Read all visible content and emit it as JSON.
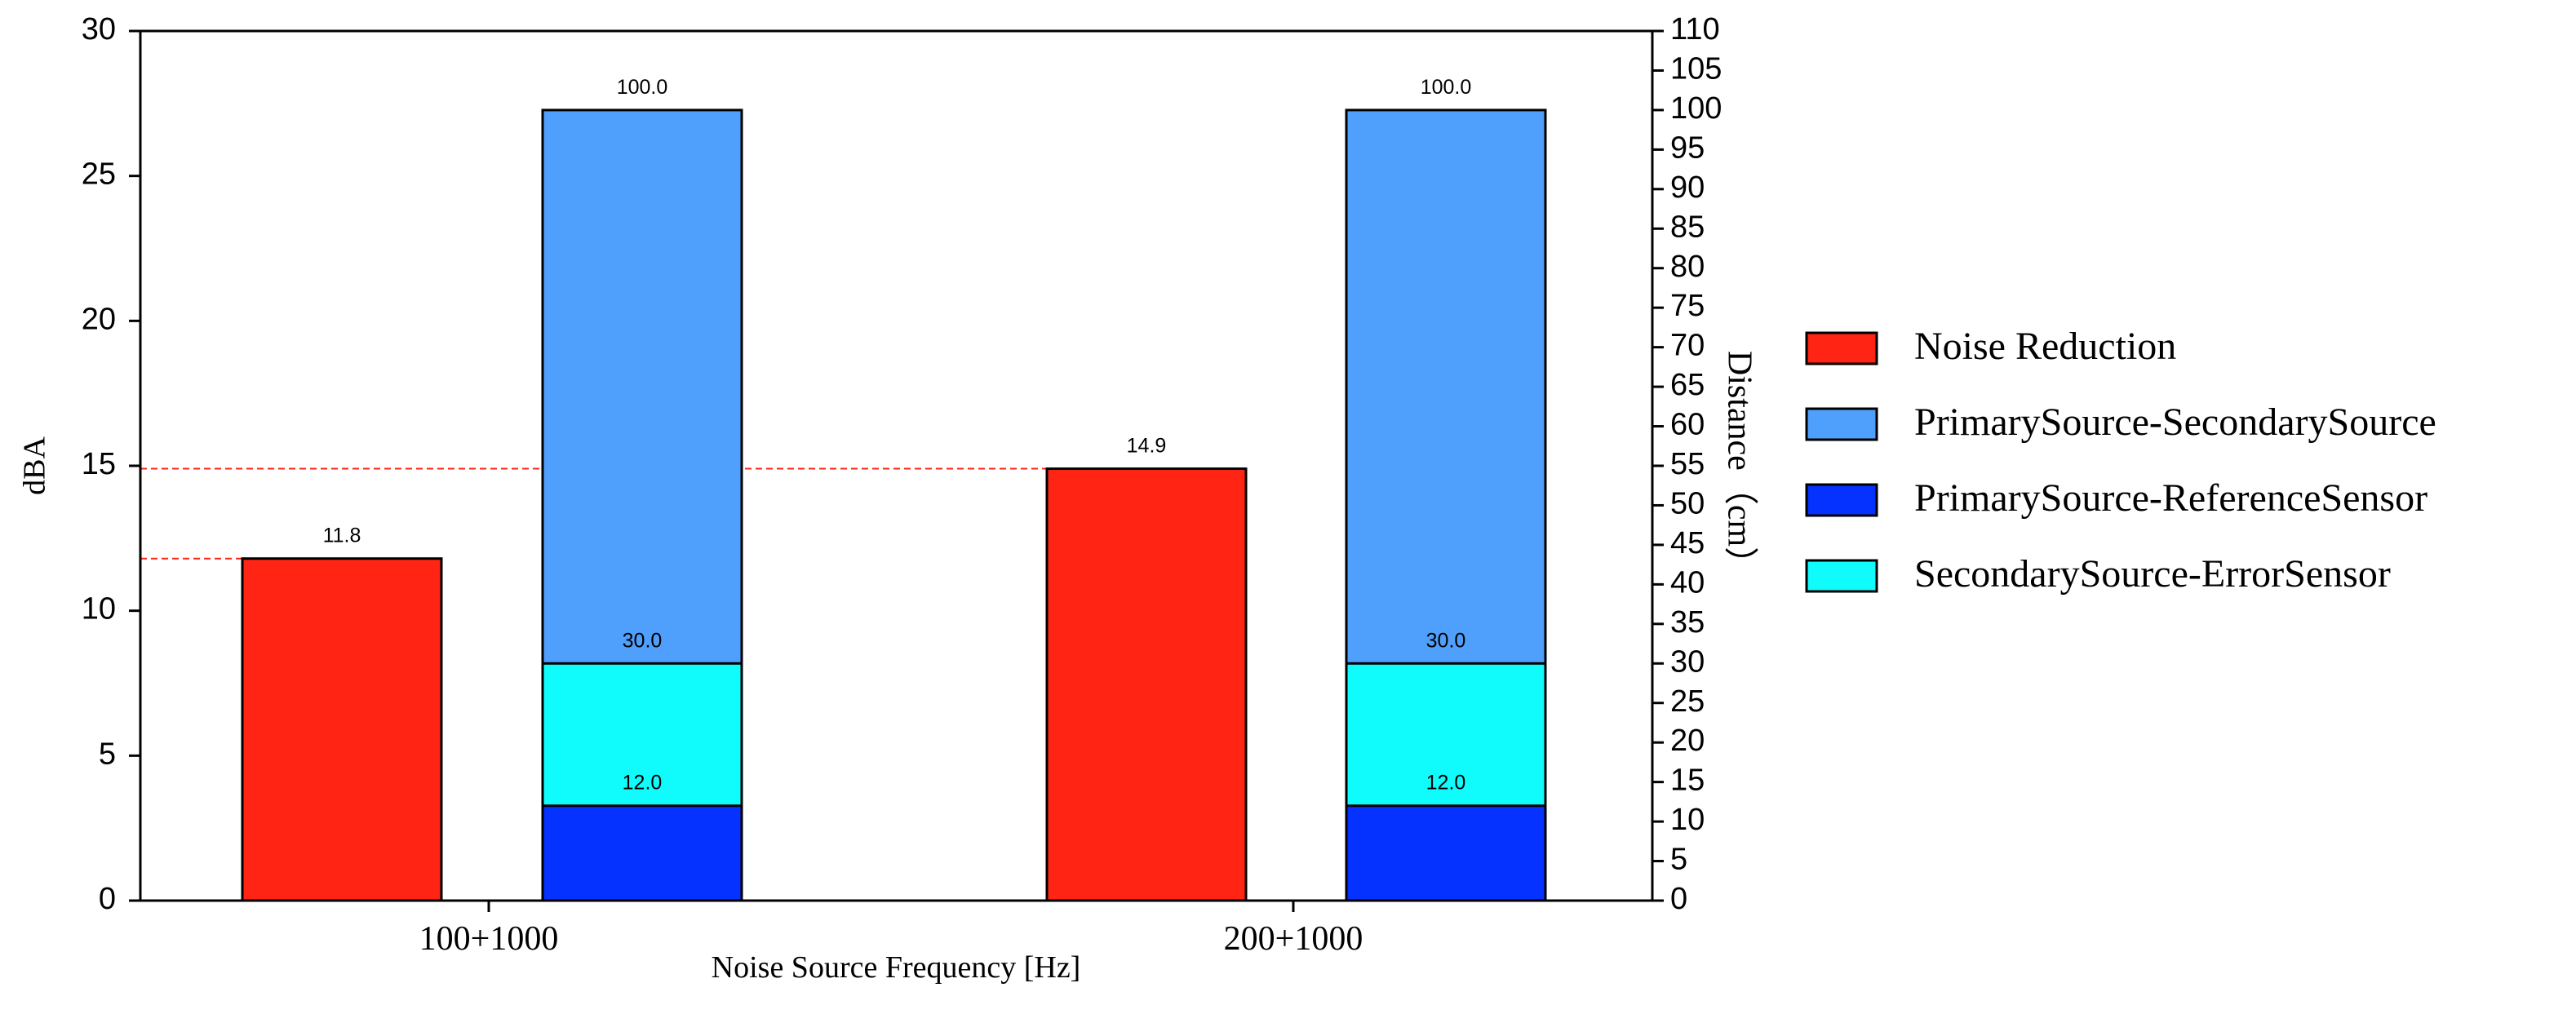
{
  "chart_data": {
    "type": "bar",
    "categories": [
      "100+1000",
      "200+1000"
    ],
    "xlabel": "Noise Source Frequency [Hz]",
    "ylabel": "dBA",
    "ylabel_right": "Distance（cm）",
    "ylim": [
      0,
      30
    ],
    "ylim_right": [
      0,
      110
    ],
    "yticks": [
      "0",
      "5",
      "10",
      "15",
      "20",
      "25",
      "30"
    ],
    "yticks_right": [
      "0",
      "5",
      "10",
      "15",
      "20",
      "25",
      "30",
      "35",
      "40",
      "45",
      "50",
      "55",
      "60",
      "65",
      "70",
      "75",
      "80",
      "85",
      "90",
      "95",
      "100",
      "105",
      "110"
    ],
    "grid": false,
    "reference_lines": "red dashed lines at the Noise Reduction values",
    "series": [
      {
        "name": "Noise Reduction",
        "axis": "left",
        "color": "#ff2414",
        "values": [
          11.8,
          14.9
        ],
        "labels": [
          "11.8",
          "14.9"
        ]
      },
      {
        "name": "PrimarySource-SecondarySource",
        "axis": "right",
        "color": "#4f9ffc",
        "values": [
          100.0,
          100.0
        ],
        "labels": [
          "100.0",
          "100.0"
        ]
      },
      {
        "name": "PrimarySource-ReferenceSensor",
        "axis": "right",
        "color": "#0532ff",
        "values": [
          12.0,
          12.0
        ],
        "labels": [
          "12.0",
          "12.0"
        ]
      },
      {
        "name": "SecondarySource-ErrorSensor",
        "axis": "right",
        "color": "#10fcfc",
        "values": [
          30.0,
          30.0
        ],
        "labels": [
          "30.0",
          "30.0"
        ]
      }
    ],
    "legend": [
      "Noise Reduction",
      "PrimarySource-SecondarySource",
      "PrimarySource-ReferenceSensor",
      "SecondarySource-ErrorSensor"
    ],
    "legend_position": "right"
  }
}
